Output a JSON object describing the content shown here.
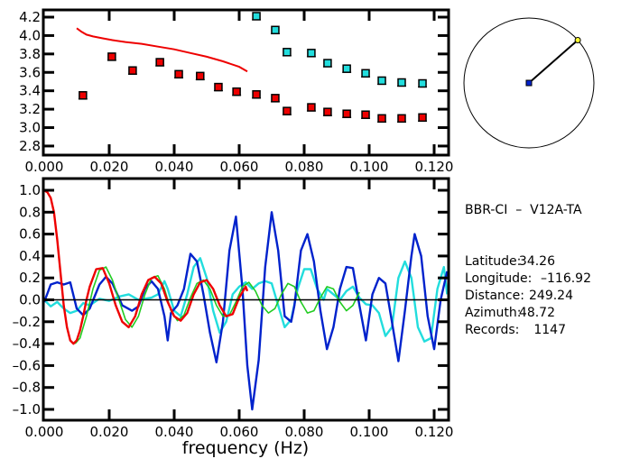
{
  "colors": {
    "red": "#ee0000",
    "cyan": "#22dddd",
    "blue": "#0022cc",
    "green": "#22cc22",
    "black": "#000000",
    "station_marker": "#ffff33",
    "source_marker": "#0022cc"
  },
  "info_panel": {
    "title": "BBR-CI  –  V12A-TA",
    "rows": [
      {
        "label": "Latitude:",
        "value": "34.26"
      },
      {
        "label": "Longitude:",
        "value": "–116.92"
      },
      {
        "label": "Distance:",
        "value": "249.24"
      },
      {
        "label": "Azimuth:",
        "value": "48.72"
      },
      {
        "label": "Records:",
        "value": "1147"
      }
    ]
  },
  "azimuth_plot": {
    "azimuth_deg": 48.72
  },
  "chart_data": [
    {
      "type": "scatter",
      "title": "",
      "xlabel": "",
      "ylabel": "",
      "xlim": [
        0,
        0.1244
      ],
      "ylim": [
        2.72,
        4.28
      ],
      "xticks": [
        0.0,
        0.02,
        0.04,
        0.06,
        0.08,
        0.1,
        0.12
      ],
      "xtick_labels": [
        "0.000",
        "0.020",
        "0.040",
        "0.060",
        "0.080",
        "0.100",
        "0.120"
      ],
      "yticks": [
        2.8,
        3.0,
        3.2,
        3.4,
        3.6,
        3.8,
        4.0,
        4.2
      ],
      "ytick_labels": [
        "2.8",
        "3.0",
        "3.2",
        "3.4",
        "3.6",
        "3.8",
        "4.0",
        "4.2"
      ],
      "series": [
        {
          "name": "red-points",
          "kind": "points",
          "color": "#ee0000",
          "x": [
            0.0119,
            0.0208,
            0.0272,
            0.0356,
            0.0414,
            0.048,
            0.0536,
            0.0592,
            0.0653,
            0.0711,
            0.0747,
            0.0822,
            0.0872,
            0.0931,
            0.0989,
            0.1039,
            0.11,
            0.1164
          ],
          "y": [
            3.35,
            3.77,
            3.62,
            3.71,
            3.58,
            3.56,
            3.44,
            3.39,
            3.36,
            3.32,
            3.18,
            3.22,
            3.17,
            3.15,
            3.14,
            3.1,
            3.1,
            3.11
          ]
        },
        {
          "name": "cyan-points",
          "kind": "points",
          "color": "#22dddd",
          "x": [
            0.0653,
            0.0711,
            0.0747,
            0.0822,
            0.0872,
            0.0931,
            0.0989,
            0.1039,
            0.11,
            0.1164
          ],
          "y": [
            4.21,
            4.06,
            3.82,
            3.81,
            3.7,
            3.64,
            3.59,
            3.51,
            3.49,
            3.48
          ]
        },
        {
          "name": "red-curve",
          "kind": "line",
          "color": "#ee0000",
          "x": [
            0.01,
            0.0115,
            0.013,
            0.015,
            0.018,
            0.021,
            0.025,
            0.03,
            0.035,
            0.04,
            0.045,
            0.05,
            0.055,
            0.06,
            0.0625
          ],
          "y": [
            4.08,
            4.04,
            4.01,
            3.99,
            3.97,
            3.95,
            3.93,
            3.91,
            3.88,
            3.85,
            3.81,
            3.77,
            3.72,
            3.66,
            3.61
          ]
        }
      ]
    },
    {
      "type": "line",
      "title": "",
      "xlabel": "frequency (Hz)",
      "ylabel": "",
      "xlim": [
        0,
        0.1244
      ],
      "ylim": [
        -1.11,
        1.1
      ],
      "xticks": [
        0.0,
        0.02,
        0.04,
        0.06,
        0.08,
        0.1,
        0.12
      ],
      "xtick_labels": [
        "0.000",
        "0.020",
        "0.040",
        "0.060",
        "0.080",
        "0.100",
        "0.120"
      ],
      "yticks": [
        -1.0,
        -0.8,
        -0.6,
        -0.4,
        -0.2,
        0.0,
        0.2,
        0.4,
        0.6,
        0.8,
        1.0
      ],
      "ytick_labels": [
        "–1.0",
        "–0.8",
        "–0.6",
        "–0.4",
        "–0.2",
        "0.0",
        "0.2",
        "0.4",
        "0.6",
        "0.8",
        "1.0"
      ],
      "zero_line": true,
      "series": [
        {
          "name": "blue",
          "color": "#0022cc",
          "x": [
            0.0,
            0.002,
            0.004,
            0.006,
            0.008,
            0.01,
            0.012,
            0.014,
            0.017,
            0.019,
            0.021,
            0.024,
            0.027,
            0.029,
            0.031,
            0.033,
            0.035,
            0.037,
            0.038,
            0.039,
            0.041,
            0.043,
            0.045,
            0.047,
            0.049,
            0.051,
            0.053,
            0.055,
            0.057,
            0.059,
            0.061,
            0.0625,
            0.064,
            0.066,
            0.068,
            0.07,
            0.072,
            0.074,
            0.076,
            0.077,
            0.079,
            0.081,
            0.083,
            0.085,
            0.087,
            0.089,
            0.091,
            0.093,
            0.095,
            0.097,
            0.099,
            0.101,
            0.103,
            0.105,
            0.107,
            0.109,
            0.111,
            0.113,
            0.114,
            0.116,
            0.118,
            0.12,
            0.122,
            0.124
          ],
          "y": [
            -0.02,
            0.14,
            0.16,
            0.14,
            0.16,
            -0.08,
            -0.14,
            -0.08,
            0.14,
            0.21,
            0.15,
            -0.05,
            -0.1,
            -0.06,
            0.1,
            0.17,
            0.1,
            -0.15,
            -0.37,
            -0.12,
            -0.05,
            0.1,
            0.42,
            0.35,
            0.05,
            -0.3,
            -0.57,
            -0.2,
            0.45,
            0.76,
            0.1,
            -0.6,
            -1.0,
            -0.55,
            0.3,
            0.8,
            0.45,
            -0.15,
            -0.2,
            -0.05,
            0.45,
            0.6,
            0.35,
            -0.1,
            -0.45,
            -0.25,
            0.1,
            0.3,
            0.29,
            -0.05,
            -0.37,
            0.05,
            0.2,
            0.15,
            -0.2,
            -0.56,
            -0.1,
            0.4,
            0.6,
            0.4,
            -0.15,
            -0.45,
            0.0,
            0.26
          ]
        },
        {
          "name": "cyan",
          "color": "#22dddd",
          "x": [
            0.0,
            0.002,
            0.004,
            0.006,
            0.008,
            0.01,
            0.012,
            0.014,
            0.017,
            0.02,
            0.023,
            0.026,
            0.029,
            0.031,
            0.033,
            0.035,
            0.037,
            0.038,
            0.04,
            0.042,
            0.044,
            0.046,
            0.048,
            0.05,
            0.052,
            0.054,
            0.056,
            0.058,
            0.06,
            0.062,
            0.064,
            0.066,
            0.068,
            0.07,
            0.072,
            0.074,
            0.076,
            0.078,
            0.08,
            0.082,
            0.084,
            0.086,
            0.087,
            0.089,
            0.091,
            0.093,
            0.095,
            0.097,
            0.099,
            0.101,
            0.103,
            0.105,
            0.107,
            0.109,
            0.111,
            0.113,
            0.115,
            0.117,
            0.119,
            0.121,
            0.123,
            0.124
          ],
          "y": [
            0.0,
            -0.06,
            -0.02,
            -0.08,
            -0.12,
            -0.1,
            -0.03,
            -0.05,
            0.01,
            -0.01,
            0.03,
            0.05,
            0.0,
            0.01,
            0.02,
            0.05,
            0.17,
            0.1,
            -0.1,
            -0.15,
            0.05,
            0.3,
            0.38,
            0.2,
            -0.1,
            -0.3,
            -0.2,
            0.05,
            0.12,
            0.16,
            0.1,
            0.15,
            0.17,
            0.15,
            -0.05,
            -0.25,
            -0.18,
            0.1,
            0.28,
            0.28,
            0.1,
            0.0,
            0.1,
            0.05,
            0.0,
            0.08,
            0.12,
            0.02,
            -0.04,
            -0.05,
            -0.12,
            -0.33,
            -0.25,
            0.2,
            0.35,
            0.2,
            -0.25,
            -0.38,
            -0.35,
            0.1,
            0.3,
            0.05
          ]
        },
        {
          "name": "red",
          "color": "#ee0000",
          "x": [
            0.0,
            0.001,
            0.002,
            0.003,
            0.004,
            0.005,
            0.006,
            0.007,
            0.008,
            0.009,
            0.01,
            0.011,
            0.012,
            0.013,
            0.014,
            0.016,
            0.018,
            0.02,
            0.022,
            0.024,
            0.026,
            0.028,
            0.03,
            0.032,
            0.034,
            0.036,
            0.038,
            0.04,
            0.042,
            0.044,
            0.046,
            0.048,
            0.05,
            0.052,
            0.054,
            0.056,
            0.058,
            0.06,
            0.062,
            0.0625
          ],
          "y": [
            1.0,
            0.98,
            0.93,
            0.8,
            0.55,
            0.25,
            -0.05,
            -0.25,
            -0.37,
            -0.4,
            -0.37,
            -0.28,
            -0.15,
            0.0,
            0.12,
            0.28,
            0.29,
            0.15,
            -0.05,
            -0.2,
            -0.25,
            -0.15,
            0.05,
            0.18,
            0.21,
            0.15,
            -0.02,
            -0.15,
            -0.19,
            -0.12,
            0.05,
            0.16,
            0.18,
            0.1,
            -0.05,
            -0.15,
            -0.13,
            0.02,
            0.12,
            0.08
          ]
        },
        {
          "name": "green",
          "color": "#22cc22",
          "x": [
            0.0095,
            0.011,
            0.013,
            0.015,
            0.017,
            0.019,
            0.021,
            0.023,
            0.025,
            0.027,
            0.029,
            0.031,
            0.033,
            0.035,
            0.037,
            0.039,
            0.041,
            0.043,
            0.045,
            0.047,
            0.049,
            0.051,
            0.053,
            0.055,
            0.057,
            0.059,
            0.061,
            0.063,
            0.065,
            0.067,
            0.069,
            0.071,
            0.073,
            0.075,
            0.077,
            0.079,
            0.081,
            0.083,
            0.085,
            0.087,
            0.089,
            0.091,
            0.093,
            0.095,
            0.097
          ],
          "y": [
            -0.4,
            -0.35,
            -0.15,
            0.1,
            0.27,
            0.3,
            0.18,
            0.0,
            -0.18,
            -0.25,
            -0.15,
            0.05,
            0.2,
            0.22,
            0.1,
            -0.1,
            -0.19,
            -0.14,
            0.02,
            0.15,
            0.18,
            0.1,
            -0.05,
            -0.15,
            -0.14,
            -0.02,
            0.12,
            0.16,
            0.08,
            -0.05,
            -0.12,
            -0.08,
            0.05,
            0.15,
            0.12,
            -0.02,
            -0.12,
            -0.1,
            0.02,
            0.12,
            0.1,
            -0.02,
            -0.1,
            -0.05,
            0.07
          ]
        }
      ]
    }
  ]
}
